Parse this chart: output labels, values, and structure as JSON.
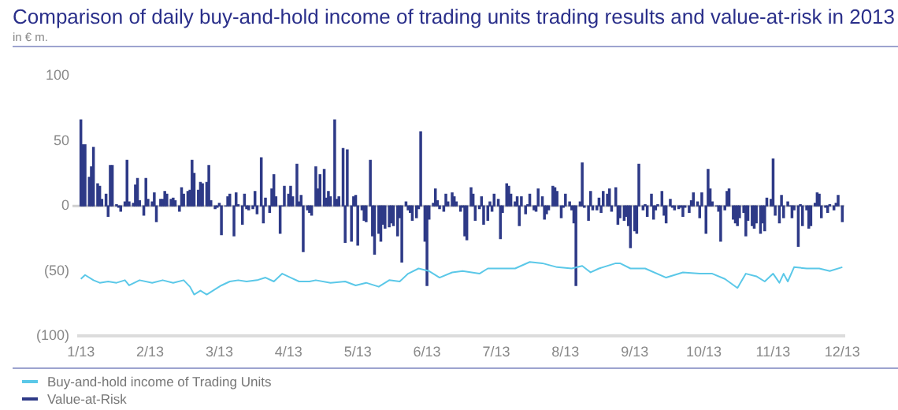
{
  "chart_data": {
    "type": "bar",
    "title": "Comparison of daily buy-and-hold income of trading units trading results and value-at-risk in 2013",
    "subtitle": "in € m.",
    "x": [
      "2013-01-02",
      "2013-01-03",
      "2013-01-04",
      "2013-01-06",
      "2013-01-07",
      "2013-01-08",
      "2013-01-10",
      "2013-01-11",
      "2013-01-12",
      "2013-01-14",
      "2013-01-15",
      "2013-01-16",
      "2013-01-17",
      "2013-01-19",
      "2013-01-20",
      "2013-01-21",
      "2013-01-23",
      "2013-01-24",
      "2013-01-25",
      "2013-01-27",
      "2013-01-28",
      "2013-01-29",
      "2013-01-30",
      "2013-02-01",
      "2013-02-02",
      "2013-02-03",
      "2013-02-05",
      "2013-02-06",
      "2013-02-07",
      "2013-02-09",
      "2013-02-10",
      "2013-02-11",
      "2013-02-12",
      "2013-02-14",
      "2013-02-15",
      "2013-02-16",
      "2013-02-18",
      "2013-02-19",
      "2013-02-20",
      "2013-02-22",
      "2013-02-23",
      "2013-02-24",
      "2013-02-25",
      "2013-02-27",
      "2013-02-28",
      "2013-03-01",
      "2013-03-03",
      "2013-03-04",
      "2013-03-05",
      "2013-03-07",
      "2013-03-08",
      "2013-03-09",
      "2013-03-10",
      "2013-03-12",
      "2013-03-13",
      "2013-03-14",
      "2013-03-16",
      "2013-03-17",
      "2013-03-18",
      "2013-03-20",
      "2013-03-21",
      "2013-03-22",
      "2013-03-23",
      "2013-03-25",
      "2013-03-26",
      "2013-03-27",
      "2013-03-29",
      "2013-03-30",
      "2013-03-31",
      "2013-04-02",
      "2013-04-03",
      "2013-04-04",
      "2013-04-05",
      "2013-04-07",
      "2013-04-08",
      "2013-04-09",
      "2013-04-11",
      "2013-04-12",
      "2013-04-13",
      "2013-04-15",
      "2013-04-16",
      "2013-04-17",
      "2013-04-18",
      "2013-04-20",
      "2013-04-21",
      "2013-04-22",
      "2013-04-24",
      "2013-04-25",
      "2013-04-26",
      "2013-04-28",
      "2013-04-29",
      "2013-04-30",
      "2013-05-01",
      "2013-05-03",
      "2013-05-04",
      "2013-05-05",
      "2013-05-07",
      "2013-05-08",
      "2013-05-09",
      "2013-05-11",
      "2013-05-12",
      "2013-05-13",
      "2013-05-14",
      "2013-05-16",
      "2013-05-17",
      "2013-05-18",
      "2013-05-20",
      "2013-05-21",
      "2013-05-22",
      "2013-05-24",
      "2013-05-25",
      "2013-05-26",
      "2013-05-27",
      "2013-05-29",
      "2013-05-30",
      "2013-05-31",
      "2013-06-02",
      "2013-06-03",
      "2013-06-04",
      "2013-06-06",
      "2013-06-07",
      "2013-06-08",
      "2013-06-09",
      "2013-06-11",
      "2013-06-12",
      "2013-06-13",
      "2013-06-15",
      "2013-06-16",
      "2013-06-17",
      "2013-06-19",
      "2013-06-20",
      "2013-06-21",
      "2013-06-22",
      "2013-06-24",
      "2013-06-25",
      "2013-06-26",
      "2013-06-28",
      "2013-06-29",
      "2013-06-30",
      "2013-07-02",
      "2013-07-03",
      "2013-07-04",
      "2013-07-05",
      "2013-07-07",
      "2013-07-08",
      "2013-07-09",
      "2013-07-11",
      "2013-07-12",
      "2013-07-13",
      "2013-07-15",
      "2013-07-16",
      "2013-07-17",
      "2013-07-18",
      "2013-07-20",
      "2013-07-21",
      "2013-07-22",
      "2013-07-24",
      "2013-07-25",
      "2013-07-26",
      "2013-07-28",
      "2013-07-29",
      "2013-07-30",
      "2013-07-31",
      "2013-08-02",
      "2013-08-03",
      "2013-08-04",
      "2013-08-06",
      "2013-08-07",
      "2013-08-08",
      "2013-08-10",
      "2013-08-11",
      "2013-08-12",
      "2013-08-13",
      "2013-08-15",
      "2013-08-16",
      "2013-08-17",
      "2013-08-19",
      "2013-08-20",
      "2013-08-21",
      "2013-08-23",
      "2013-08-24",
      "2013-08-25",
      "2013-08-26",
      "2013-08-28",
      "2013-08-29",
      "2013-08-30",
      "2013-09-01",
      "2013-09-02",
      "2013-09-03",
      "2013-09-05",
      "2013-09-06",
      "2013-09-07",
      "2013-09-08",
      "2013-09-10",
      "2013-09-11",
      "2013-09-12",
      "2013-09-14",
      "2013-09-15",
      "2013-09-16",
      "2013-09-18",
      "2013-09-19",
      "2013-09-20",
      "2013-09-21",
      "2013-09-23",
      "2013-09-24",
      "2013-09-25",
      "2013-09-27",
      "2013-09-28",
      "2013-09-29",
      "2013-10-01",
      "2013-10-02",
      "2013-10-03",
      "2013-10-04",
      "2013-10-06",
      "2013-10-07",
      "2013-10-08",
      "2013-10-10",
      "2013-10-11",
      "2013-10-12",
      "2013-10-14",
      "2013-10-15",
      "2013-10-16",
      "2013-10-17",
      "2013-10-19",
      "2013-10-20",
      "2013-10-21",
      "2013-10-23",
      "2013-10-24",
      "2013-10-25",
      "2013-10-27",
      "2013-10-28",
      "2013-10-29",
      "2013-10-30",
      "2013-11-01",
      "2013-11-02",
      "2013-11-03",
      "2013-11-05",
      "2013-11-06",
      "2013-11-07",
      "2013-11-09",
      "2013-11-10",
      "2013-11-11",
      "2013-11-12",
      "2013-11-14",
      "2013-11-15",
      "2013-11-16",
      "2013-11-18",
      "2013-11-19",
      "2013-11-20",
      "2013-11-22",
      "2013-11-23",
      "2013-11-24",
      "2013-11-25",
      "2013-11-27",
      "2013-11-28",
      "2013-11-29",
      "2013-12-01",
      "2013-12-02",
      "2013-12-03",
      "2013-12-05",
      "2013-12-06",
      "2013-12-07",
      "2013-12-08",
      "2013-12-10",
      "2013-12-11",
      "2013-12-12",
      "2013-12-14",
      "2013-12-15",
      "2013-12-16",
      "2013-12-18",
      "2013-12-19",
      "2013-12-20",
      "2013-12-21",
      "2013-12-23",
      "2013-12-24",
      "2013-12-25",
      "2013-12-27",
      "2013-12-28",
      "2013-12-29",
      "2013-12-31"
    ],
    "series": [
      {
        "name": "Buy-and-hold income of Trading Units",
        "color": "#5bc8e8",
        "type": "line",
        "x": [
          "2013-01-02",
          "2013-01-04",
          "2013-01-08",
          "2013-01-11",
          "2013-01-15",
          "2013-01-19",
          "2013-01-23",
          "2013-01-25",
          "2013-01-30",
          "2013-02-05",
          "2013-02-10",
          "2013-02-15",
          "2013-02-20",
          "2013-02-23",
          "2013-02-25",
          "2013-02-28",
          "2013-03-03",
          "2013-03-07",
          "2013-03-10",
          "2013-03-14",
          "2013-03-18",
          "2013-03-22",
          "2013-03-27",
          "2013-03-31",
          "2013-04-04",
          "2013-04-08",
          "2013-04-12",
          "2013-04-16",
          "2013-04-21",
          "2013-04-24",
          "2013-05-01",
          "2013-05-08",
          "2013-05-13",
          "2013-05-18",
          "2013-05-24",
          "2013-05-29",
          "2013-06-03",
          "2013-06-07",
          "2013-06-12",
          "2013-06-17",
          "2013-06-22",
          "2013-06-28",
          "2013-07-03",
          "2013-07-11",
          "2013-07-15",
          "2013-07-20",
          "2013-07-28",
          "2013-08-04",
          "2013-08-10",
          "2013-08-17",
          "2013-08-24",
          "2013-08-29",
          "2013-09-02",
          "2013-09-06",
          "2013-09-14",
          "2013-09-16",
          "2013-09-21",
          "2013-09-28",
          "2013-10-08",
          "2013-10-16",
          "2013-10-24",
          "2013-10-30",
          "2013-11-05",
          "2013-11-11",
          "2013-11-15",
          "2013-11-20",
          "2013-11-24",
          "2013-11-28",
          "2013-12-01",
          "2013-12-03",
          "2013-12-05",
          "2013-12-08",
          "2013-12-14",
          "2013-12-20",
          "2013-12-25",
          "2013-12-31"
        ],
        "values": [
          -56,
          -53,
          -57,
          -59,
          -58,
          -59,
          -57,
          -61,
          -57,
          -59,
          -57,
          -59,
          -57,
          -62,
          -68,
          -65,
          -68,
          -64,
          -61,
          -58,
          -57,
          -58,
          -57,
          -55,
          -58,
          -52,
          -55,
          -58,
          -58,
          -57,
          -59,
          -58,
          -61,
          -59,
          -62,
          -57,
          -58,
          -52,
          -48,
          -50,
          -55,
          -51,
          -50,
          -52,
          -48,
          -48,
          -48,
          -43,
          -44,
          -47,
          -48,
          -46,
          -51,
          -48,
          -44,
          -44,
          -48,
          -48,
          -55,
          -51,
          -52,
          -52,
          -56,
          -63,
          -52,
          -54,
          -58,
          -52,
          -59,
          -52,
          -58,
          -47,
          -48,
          -48,
          -50,
          -47
        ]
      },
      {
        "name": "Value-at-Risk",
        "color": "#2e3a87",
        "values": [
          66,
          47,
          47,
          22,
          30,
          45,
          17,
          15,
          5,
          9,
          -8,
          31,
          31,
          1,
          -1,
          -4,
          3,
          35,
          3,
          2,
          16,
          21,
          4,
          -7,
          21,
          5,
          3,
          10,
          -12,
          5,
          5,
          11,
          9,
          5,
          6,
          4,
          -4,
          14,
          9,
          11,
          12,
          35,
          25,
          12,
          18,
          17,
          18,
          31,
          4,
          -2,
          -1,
          2,
          -22,
          0,
          7,
          9,
          -23,
          10,
          1,
          -14,
          9,
          -2,
          -3,
          -2,
          11,
          -6,
          37,
          -13,
          6,
          -5,
          13,
          24,
          7,
          -21,
          0,
          15,
          9,
          15,
          7,
          32,
          3,
          8,
          -35,
          -3,
          -5,
          -7,
          30,
          13,
          24,
          28,
          6,
          11,
          7,
          66,
          5,
          7,
          44,
          -28,
          43,
          -27,
          7,
          8,
          -30,
          -3,
          -11,
          -12,
          35,
          -23,
          -37,
          -21,
          -27,
          -14,
          -17,
          -16,
          -13,
          -15,
          -23,
          -9,
          -43,
          3,
          -3,
          -5,
          -11,
          -9,
          -2,
          57,
          -27,
          -61,
          -10,
          2,
          13,
          4,
          -2,
          -4,
          9,
          3,
          10,
          7,
          3,
          -4,
          -1,
          -23,
          -26,
          14,
          9,
          -11,
          -2,
          7,
          -14,
          -11,
          3,
          -4,
          9,
          5,
          -25,
          -5,
          17,
          15,
          9,
          3,
          7,
          -15,
          7,
          -6,
          1,
          9,
          -3,
          -4,
          13,
          7,
          -10,
          -6,
          -3,
          15,
          14,
          11,
          -9,
          -1,
          9,
          3,
          -3,
          -13,
          -61,
          3,
          33,
          -1,
          -11,
          11,
          -3,
          -3,
          6,
          -5,
          11,
          9,
          13,
          -4,
          14,
          -14,
          -9,
          -11,
          -8,
          -15,
          -32,
          -19,
          -21,
          32,
          -3,
          1,
          -8,
          9,
          -10,
          -3,
          1,
          11,
          -7,
          -13,
          5,
          -1,
          -3,
          -2,
          -1,
          -8,
          -1,
          -5,
          4,
          10,
          3,
          -9,
          10,
          -21,
          28,
          13,
          3,
          0,
          -4,
          -27,
          -3,
          11,
          13,
          -10,
          -13,
          -15,
          -9,
          -5,
          -23,
          -11,
          -15,
          -17,
          -13,
          -21,
          -13,
          -19,
          6,
          5,
          36,
          -7,
          -13,
          8,
          -9,
          3,
          0,
          -9,
          -3,
          -31,
          1,
          -15,
          -3,
          -17,
          -15,
          2,
          10,
          9,
          -9,
          -1,
          -5,
          1,
          -3,
          2,
          8,
          -12
        ]
      }
    ],
    "xlim": [
      "2013-01-01",
      "2014-01-01"
    ],
    "xticks": [
      {
        "value": "2013-01-02",
        "label": "1/13"
      },
      {
        "value": "2013-02-04",
        "label": "2/13"
      },
      {
        "value": "2013-03-09",
        "label": "3/13"
      },
      {
        "value": "2013-04-11",
        "label": "4/13"
      },
      {
        "value": "2013-05-14",
        "label": "5/13"
      },
      {
        "value": "2013-06-16",
        "label": "6/13"
      },
      {
        "value": "2013-07-19",
        "label": "7/13"
      },
      {
        "value": "2013-08-21",
        "label": "8/13"
      },
      {
        "value": "2013-09-23",
        "label": "9/13"
      },
      {
        "value": "2013-10-26",
        "label": "10/13"
      },
      {
        "value": "2013-11-28",
        "label": "11/13"
      },
      {
        "value": "2013-12-31",
        "label": "12/13"
      }
    ],
    "ylim": [
      -100,
      100
    ],
    "yticks": [
      100,
      50,
      0,
      {
        "value": -50,
        "label": "(50)"
      },
      {
        "value": -100,
        "label": "(100)"
      }
    ],
    "ref_lines": [
      {
        "axis": "y",
        "value": 0,
        "color": "#d0d0d0"
      }
    ],
    "legend": "bottom left"
  }
}
